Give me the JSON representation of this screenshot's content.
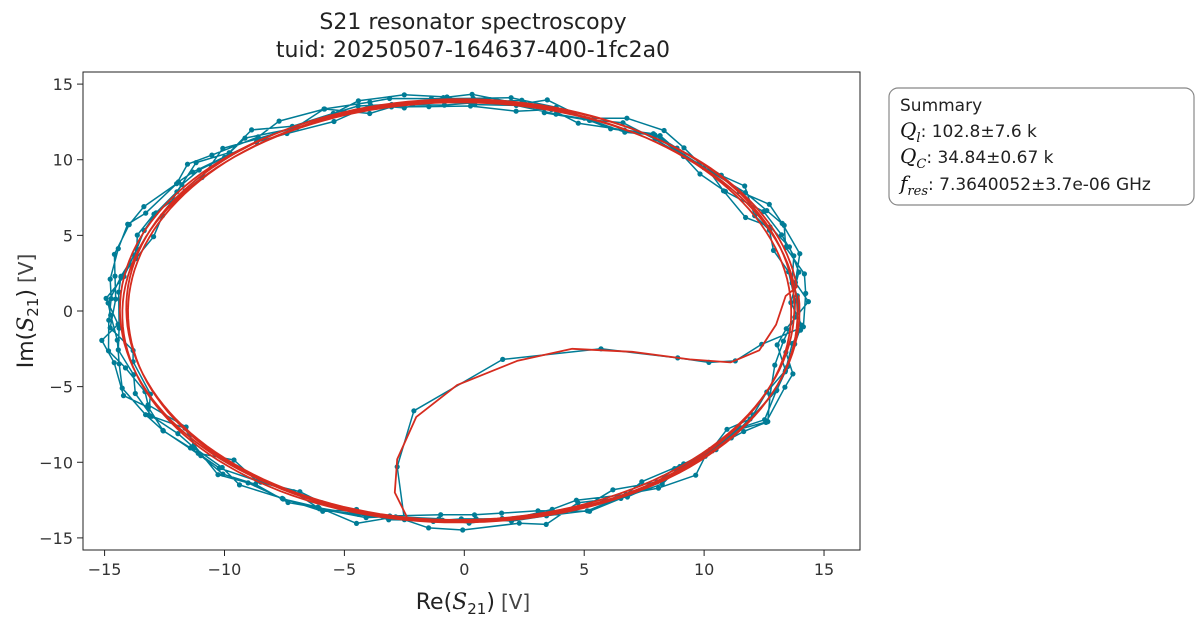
{
  "chart_data": {
    "type": "line",
    "title": "S21 resonator spectroscopy",
    "subtitle": "tuid: 20250507-164637-400-1fc2a0",
    "xlabel_prefix": "Re(",
    "xlabel_symbol": "S",
    "xlabel_sub": "21",
    "xlabel_suffix": ")",
    "xlabel_unit": "[V]",
    "ylabel_prefix": "Im(",
    "ylabel_symbol": "S",
    "ylabel_sub": "21",
    "ylabel_suffix": ")",
    "ylabel_unit": "[V]",
    "xlim": [
      -15.9,
      16.5
    ],
    "ylim": [
      -15.8,
      15.8
    ],
    "xticks": [
      -15,
      -10,
      -5,
      0,
      5,
      10,
      15
    ],
    "yticks": [
      15,
      10,
      5,
      0,
      -5,
      -10,
      -15
    ],
    "xtick_labels": [
      "−15",
      "−10",
      "−5",
      "0",
      "5",
      "10",
      "15"
    ],
    "ytick_labels": [
      "15",
      "10",
      "5",
      "0",
      "−5",
      "−10",
      "−15"
    ],
    "grid": false,
    "series": [
      {
        "color": "#007c96",
        "style": "line+markers",
        "center": [
          -0.4,
          0.0
        ],
        "radius_x": 14.3,
        "radius_y": 14.0,
        "loops": 5,
        "points_per_loop": 56,
        "lead_in": [
          [
            -2.5,
            -13.8
          ],
          [
            -2.8,
            -10.3
          ],
          [
            -2.1,
            -6.6
          ],
          [
            1.6,
            -3.2
          ],
          [
            5.7,
            -2.5
          ],
          [
            8.9,
            -3.1
          ],
          [
            10.2,
            -3.4
          ],
          [
            11.3,
            -3.3
          ],
          [
            12.4,
            -2.2
          ]
        ]
      },
      {
        "color": "#d62c1f",
        "style": "line",
        "center": [
          -0.2,
          0.0
        ],
        "radius_x": 14.0,
        "radius_y": 13.9,
        "loops": 4,
        "points_per_loop": 160,
        "lead_in": [
          [
            -2.4,
            -13.6
          ],
          [
            -2.9,
            -12.0
          ],
          [
            -2.8,
            -9.8
          ],
          [
            -2.0,
            -7.0
          ],
          [
            -0.3,
            -4.9
          ],
          [
            2.2,
            -3.3
          ],
          [
            4.5,
            -2.5
          ],
          [
            7.0,
            -2.7
          ],
          [
            9.4,
            -3.2
          ],
          [
            11.1,
            -3.4
          ],
          [
            12.3,
            -2.6
          ],
          [
            13.0,
            -0.9
          ],
          [
            13.4,
            1.0
          ]
        ]
      }
    ]
  },
  "legend": {
    "title": "Summary",
    "entries": [
      {
        "symbol": "Q",
        "sub": "l",
        "value": ": 102.8±7.6 k"
      },
      {
        "symbol": "Q",
        "sub": "C",
        "value": ": 34.84±0.67 k"
      },
      {
        "symbol": "f",
        "sub": "res",
        "value": ": 7.3640052±3.7e-06 GHz"
      }
    ]
  }
}
